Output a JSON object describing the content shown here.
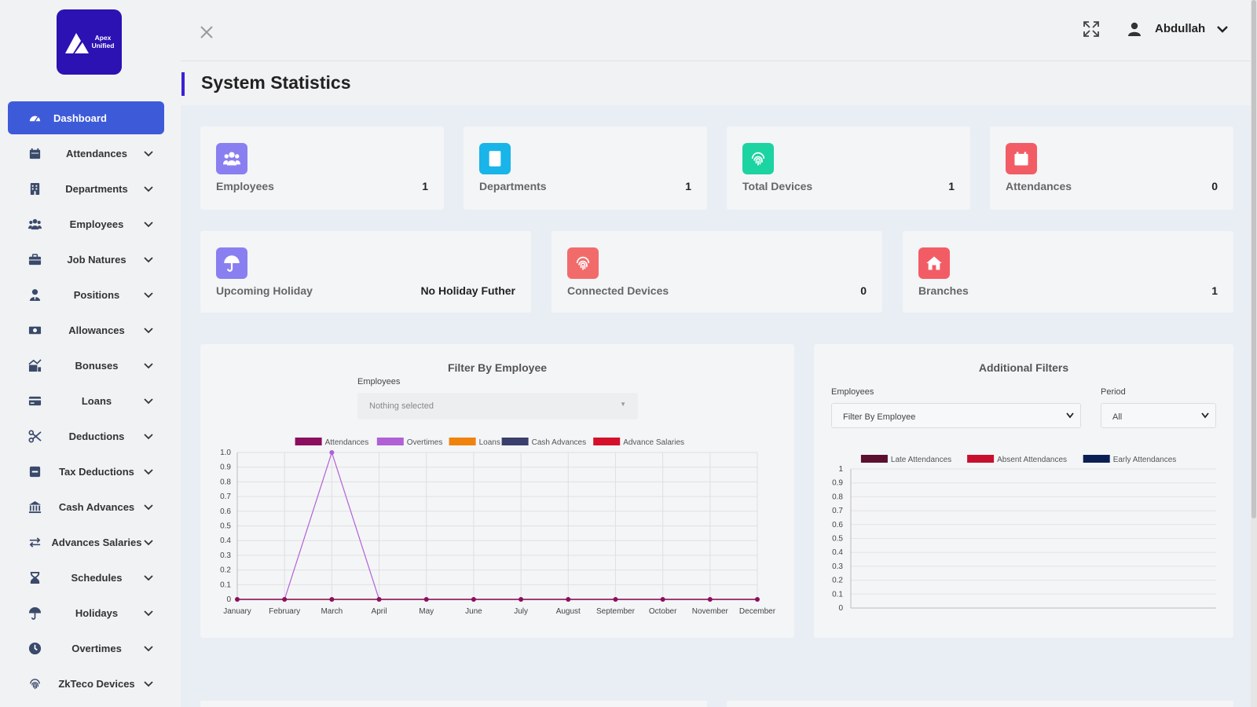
{
  "brand": {
    "logo_line1": "Apex",
    "logo_line2": "Unified"
  },
  "sidebar": {
    "items": [
      {
        "label": "Dashboard",
        "icon": "dashboard-gauge-icon",
        "active": true,
        "chevron": false
      },
      {
        "label": "Attendances",
        "icon": "calendar-icon",
        "chevron": true
      },
      {
        "label": "Departments",
        "icon": "building-icon",
        "chevron": true
      },
      {
        "label": "Employees",
        "icon": "users-icon",
        "chevron": true
      },
      {
        "label": "Job Natures",
        "icon": "briefcase-icon",
        "chevron": true
      },
      {
        "label": "Positions",
        "icon": "user-tie-icon",
        "chevron": true
      },
      {
        "label": "Allowances",
        "icon": "money-bill-icon",
        "chevron": true
      },
      {
        "label": "Bonuses",
        "icon": "chart-gift-icon",
        "chevron": true
      },
      {
        "label": "Loans",
        "icon": "credit-card-icon",
        "chevron": true
      },
      {
        "label": "Deductions",
        "icon": "scissors-icon",
        "chevron": true
      },
      {
        "label": "Tax Deductions",
        "icon": "minus-square-icon",
        "chevron": true
      },
      {
        "label": "Cash Advances",
        "icon": "bank-icon",
        "chevron": true
      },
      {
        "label": "Advances Salaries",
        "icon": "exchange-icon",
        "chevron": true
      },
      {
        "label": "Schedules",
        "icon": "hourglass-icon",
        "chevron": true
      },
      {
        "label": "Holidays",
        "icon": "umbrella-icon",
        "chevron": true
      },
      {
        "label": "Overtimes",
        "icon": "clock-icon",
        "chevron": true
      },
      {
        "label": "ZkTeco Devices",
        "icon": "fingerprint-icon",
        "chevron": true
      }
    ]
  },
  "header": {
    "username": "Abdullah",
    "user_icon": "user-icon",
    "expand_icon": "expand-icon",
    "close_icon": "close-icon"
  },
  "page": {
    "title": "System Statistics"
  },
  "stats": [
    {
      "label": "Employees",
      "value": "1",
      "color": "#8a7ff0",
      "icon": "users-icon"
    },
    {
      "label": "Departments",
      "value": "1",
      "color": "#19b4e8",
      "icon": "building-icon"
    },
    {
      "label": "Total Devices",
      "value": "1",
      "color": "#1cd3a2",
      "icon": "fingerprint-icon"
    },
    {
      "label": "Attendances",
      "value": "0",
      "color": "#f25d65",
      "icon": "calendar-icon"
    },
    {
      "label": "Upcoming Holiday",
      "value": "No Holiday Futher",
      "color": "#8a7ff0",
      "icon": "umbrella-icon"
    },
    {
      "label": "Connected Devices",
      "value": "0",
      "color": "#f26b6b",
      "icon": "fingerprint-icon"
    },
    {
      "label": "Branches",
      "value": "1",
      "color": "#f25d65",
      "icon": "home-icon"
    }
  ],
  "filter_panel": {
    "title": "Filter By Employee",
    "employees_label": "Employees",
    "employees_value": "Nothing selected"
  },
  "additional_panel": {
    "title": "Additional Filters",
    "employees_label": "Employees",
    "employees_value": "Filter By Employee",
    "period_label": "Period",
    "period_value": "All"
  },
  "chart_data": [
    {
      "type": "line",
      "categories": [
        "January",
        "February",
        "March",
        "April",
        "May",
        "June",
        "July",
        "August",
        "September",
        "October",
        "November",
        "December"
      ],
      "ylim": [
        0,
        1
      ],
      "y_ticks": [
        "0",
        "0.1",
        "0.2",
        "0.3",
        "0.4",
        "0.5",
        "0.6",
        "0.7",
        "0.8",
        "0.9",
        "1.0"
      ],
      "grid": true,
      "legend": "top",
      "series": [
        {
          "name": "Attendances",
          "color": "#8b0f5e",
          "values": [
            0,
            0,
            0,
            0,
            0,
            0,
            0,
            0,
            0,
            0,
            0,
            0
          ]
        },
        {
          "name": "Overtimes",
          "color": "#b061d6",
          "values": [
            0,
            0,
            1,
            0,
            0,
            0,
            0,
            0,
            0,
            0,
            0,
            0
          ]
        },
        {
          "name": "Loans",
          "color": "#f0820e",
          "values": [
            0,
            0,
            0,
            0,
            0,
            0,
            0,
            0,
            0,
            0,
            0,
            0
          ]
        },
        {
          "name": "Cash Advances",
          "color": "#3b3f6b",
          "values": [
            0,
            0,
            0,
            0,
            0,
            0,
            0,
            0,
            0,
            0,
            0,
            0
          ]
        },
        {
          "name": "Advance Salaries",
          "color": "#d4102a",
          "values": [
            0,
            0,
            0,
            0,
            0,
            0,
            0,
            0,
            0,
            0,
            0,
            0
          ]
        }
      ]
    },
    {
      "type": "bar",
      "categories": [],
      "ylim": [
        0,
        1
      ],
      "y_ticks": [
        "0",
        "0.1",
        "0.2",
        "0.3",
        "0.4",
        "0.5",
        "0.6",
        "0.7",
        "0.8",
        "0.9",
        "1"
      ],
      "grid": true,
      "legend": "top",
      "series": [
        {
          "name": "Late Attendances",
          "color": "#5c0f2f",
          "values": []
        },
        {
          "name": "Absent Attendances",
          "color": "#c8102e",
          "values": []
        },
        {
          "name": "Early Attendances",
          "color": "#0c1f55",
          "values": []
        }
      ]
    }
  ]
}
